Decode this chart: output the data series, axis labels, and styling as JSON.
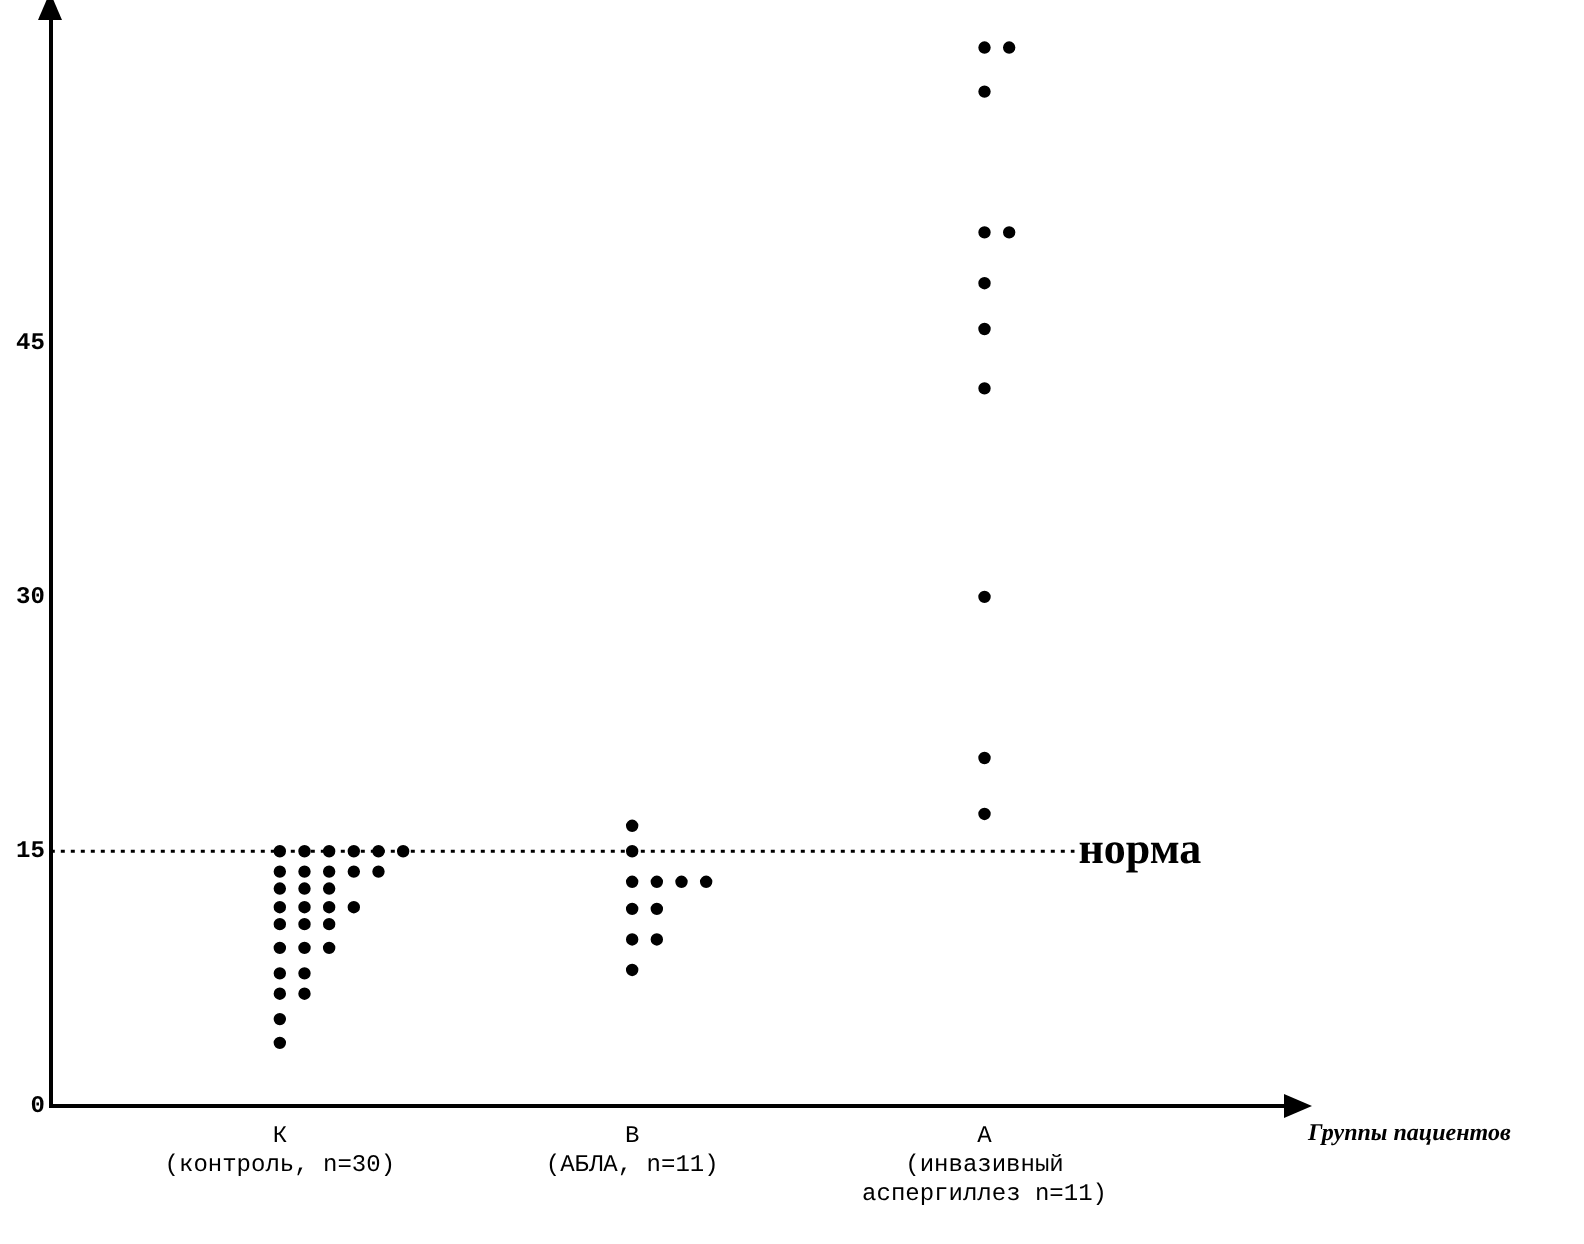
{
  "chart_data": {
    "type": "scatter",
    "annotations": [
      "Группы пациентов"
    ],
    "categories": [
      "К\n(контроль, n=30)",
      "В\n(АБЛА, n=11)",
      "А\n(инвазивный\nаспергиллез n=11)"
    ],
    "series": [
      {
        "color": "#000000",
        "x": [
          "К\n(контроль, n=30)",
          "К\n(контроль, n=30)",
          "К\n(контроль, n=30)",
          "К\n(контроль, n=30)",
          "К\n(контроль, n=30)",
          "К\n(контроль, n=30)",
          "К\n(контроль, n=30)",
          "К\n(контроль, n=30)",
          "К\n(контроль, n=30)",
          "К\n(контроль, n=30)",
          "К\n(контроль, n=30)",
          "К\n(контроль, n=30)",
          "К\n(контроль, n=30)",
          "К\n(контроль, n=30)",
          "К\n(контроль, n=30)",
          "К\n(контроль, n=30)",
          "К\n(контроль, n=30)",
          "К\n(контроль, n=30)",
          "К\n(контроль, n=30)",
          "К\n(контроль, n=30)",
          "К\n(контроль, n=30)",
          "К\n(контроль, n=30)",
          "К\n(контроль, n=30)",
          "К\n(контроль, n=30)",
          "К\n(контроль, n=30)",
          "К\n(контроль, n=30)",
          "К\n(контроль, n=30)",
          "К\n(контроль, n=30)",
          "К\n(контроль, n=30)",
          "К\n(контроль, n=30)",
          "В\n(АБЛА, n=11)",
          "В\n(АБЛА, n=11)",
          "В\n(АБЛА, n=11)",
          "В\n(АБЛА, n=11)",
          "В\n(АБЛА, n=11)",
          "В\n(АБЛА, n=11)",
          "В\n(АБЛА, n=11)",
          "В\n(АБЛА, n=11)",
          "В\n(АБЛА, n=11)",
          "В\n(АБЛА, n=11)",
          "В\n(АБЛА, n=11)",
          "А\n(инвазивный\nаспергиллез n=11)",
          "А\n(инвазивный\nаспергиллез n=11)",
          "А\n(инвазивный\nаспергиллез n=11)",
          "А\n(инвазивный\nаспергиллез n=11)",
          "А\n(инвазивный\nаспергиллез n=11)",
          "А\n(инвазивный\nаспергиллез n=11)",
          "А\n(инвазивный\nаспергиллез n=11)",
          "А\n(инвазивный\nаспергиллез n=11)",
          "А\n(инвазивный\nаспергиллез n=11)",
          "А\n(инвазивный\nаспергиллез n=11)",
          "А\n(инвазивный\nаспергиллез n=11)"
        ],
        "values": [
          15,
          15,
          15,
          15,
          15,
          15,
          13.8,
          13.8,
          13.8,
          13.8,
          13.8,
          12.8,
          12.8,
          12.8,
          11.7,
          11.7,
          11.7,
          11.7,
          10.7,
          10.7,
          10.7,
          9.3,
          9.3,
          9.3,
          7.8,
          7.8,
          6.6,
          6.6,
          5.1,
          3.7,
          16.5,
          15,
          13.2,
          13.2,
          13.2,
          13.2,
          11.6,
          11.6,
          9.8,
          9.8,
          8,
          62.4,
          62.4,
          59.8,
          51.5,
          51.5,
          48.5,
          45.8,
          42.3,
          30,
          20.5,
          17.2
        ]
      }
    ],
    "ylim": [
      0,
      64
    ],
    "yticks": [
      0,
      15,
      30,
      45
    ],
    "grid": false,
    "legend": false,
    "marker": "circle",
    "ref_lines": [
      {
        "axis": "y",
        "value": 15,
        "label": "норма",
        "line_style": "dotted",
        "color": "#000000"
      }
    ]
  }
}
